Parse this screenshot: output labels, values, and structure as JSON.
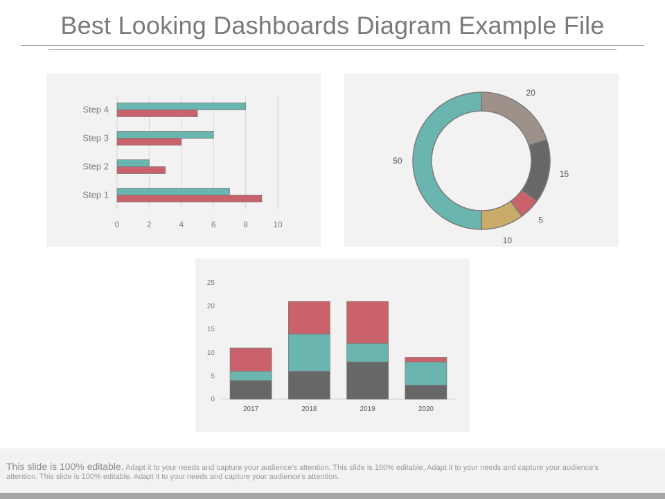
{
  "header": {
    "title": "Best Looking Dashboards Diagram Example File"
  },
  "colors": {
    "teal": "#6bb5b1",
    "red": "#c9626b",
    "taupe": "#9e9189",
    "dark": "#676767",
    "gold": "#c9ac6a"
  },
  "chart_data": [
    {
      "type": "bar",
      "orientation": "horizontal",
      "categories": [
        "Step 1",
        "Step 2",
        "Step 3",
        "Step 4"
      ],
      "series": [
        {
          "values": [
            7,
            2,
            6,
            8
          ],
          "color": "#6bb5b1"
        },
        {
          "values": [
            9,
            3,
            4,
            5
          ],
          "color": "#c9626b"
        }
      ],
      "xlim": [
        0,
        10
      ],
      "xticks": [
        "0",
        "2",
        "4",
        "6",
        "8",
        "10"
      ],
      "grid": true
    },
    {
      "type": "pie",
      "donut": true,
      "slices": [
        {
          "label": "20",
          "value": 20,
          "color": "#9e9189"
        },
        {
          "label": "15",
          "value": 15,
          "color": "#676767"
        },
        {
          "label": "5",
          "value": 5,
          "color": "#c9626b"
        },
        {
          "label": "10",
          "value": 10,
          "color": "#c9ac6a"
        },
        {
          "label": "50",
          "value": 50,
          "color": "#6bb5b1"
        }
      ]
    },
    {
      "type": "bar",
      "stacked": true,
      "categories": [
        "2017",
        "2018",
        "2019",
        "2020"
      ],
      "series": [
        {
          "values": [
            4,
            6,
            8,
            3
          ],
          "color": "#676767"
        },
        {
          "values": [
            2,
            8,
            4,
            5
          ],
          "color": "#6bb5b1"
        },
        {
          "values": [
            5,
            7,
            9,
            1
          ],
          "color": "#c9626b"
        }
      ],
      "ylim": [
        0,
        25
      ],
      "yticks": [
        "0",
        "5",
        "10",
        "15",
        "20",
        "25"
      ]
    }
  ],
  "footer": {
    "lead": "This slide is 100% editable.",
    "body": "Adapt it to your needs and capture your audience’s attention. This slide is 100% editable. Adapt it to your needs and capture your audience’s attention. This slide is 100% editable. Adapt it to your needs and capture your audience’s attention."
  }
}
